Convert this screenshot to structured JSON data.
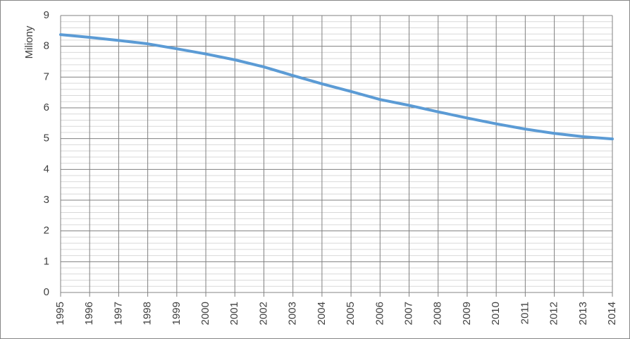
{
  "chart_data": {
    "type": "line",
    "y_label": "Miliony",
    "x": [
      1995,
      1996,
      1997,
      1998,
      1999,
      2000,
      2001,
      2002,
      2003,
      2004,
      2005,
      2006,
      2007,
      2008,
      2009,
      2010,
      2011,
      2012,
      2013,
      2014
    ],
    "series": [
      {
        "name": "Miliony",
        "color": "#5b9bd5",
        "values": [
          8.38,
          8.29,
          8.19,
          8.08,
          7.92,
          7.75,
          7.56,
          7.33,
          7.05,
          6.78,
          6.53,
          6.27,
          6.08,
          5.87,
          5.67,
          5.48,
          5.31,
          5.17,
          5.06,
          4.99
        ]
      }
    ],
    "xlim": [
      1995,
      2014
    ],
    "xticks": [
      1995,
      1996,
      1997,
      1998,
      1999,
      2000,
      2001,
      2002,
      2003,
      2004,
      2005,
      2006,
      2007,
      2008,
      2009,
      2010,
      2011,
      2012,
      2013,
      2014
    ],
    "ylim": [
      0,
      9
    ],
    "yticks": [
      0,
      1,
      2,
      3,
      4,
      5,
      6,
      7,
      8,
      9
    ],
    "grid": true,
    "minor_grid": true
  }
}
